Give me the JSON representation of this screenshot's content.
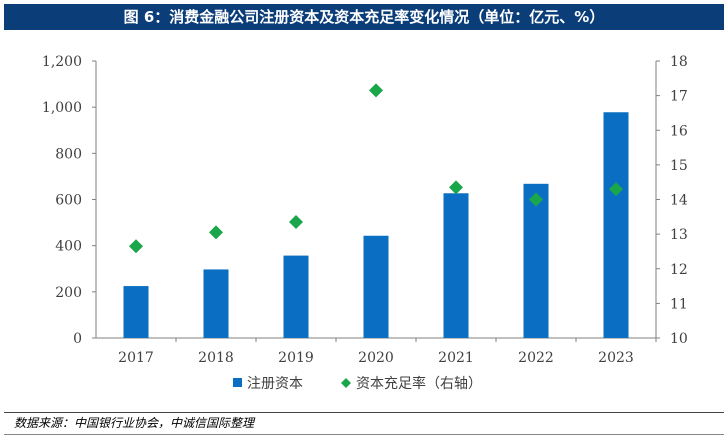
{
  "figure": {
    "title": "图 6：消费金融公司注册资本及资本充足率变化情况（单位：亿元、%）",
    "source": "数据来源：中国银行业协会，中诚信国际整理"
  },
  "chart_data": {
    "type": "bar",
    "categories": [
      "2017",
      "2018",
      "2019",
      "2020",
      "2021",
      "2022",
      "2023"
    ],
    "series": [
      {
        "name": "注册资本",
        "type": "bar",
        "axis": "left",
        "values": [
          225,
          297,
          357,
          443,
          627,
          668,
          978
        ],
        "color": "#0a6fc2"
      },
      {
        "name": "资本充足率（右轴）",
        "type": "scatter",
        "axis": "right",
        "values": [
          12.65,
          13.05,
          13.35,
          17.15,
          14.35,
          14.0,
          14.3
        ],
        "color": "#1aa64b"
      }
    ],
    "y_left": {
      "min": 0,
      "max": 1200,
      "step": 200,
      "tick_labels": [
        "0",
        "200",
        "400",
        "600",
        "800",
        "1,000",
        "1,200"
      ]
    },
    "y_right": {
      "min": 10,
      "max": 18,
      "step": 1,
      "tick_labels": [
        "10",
        "11",
        "12",
        "13",
        "14",
        "15",
        "16",
        "17",
        "18"
      ]
    },
    "legend_position": "bottom",
    "grid": false
  }
}
